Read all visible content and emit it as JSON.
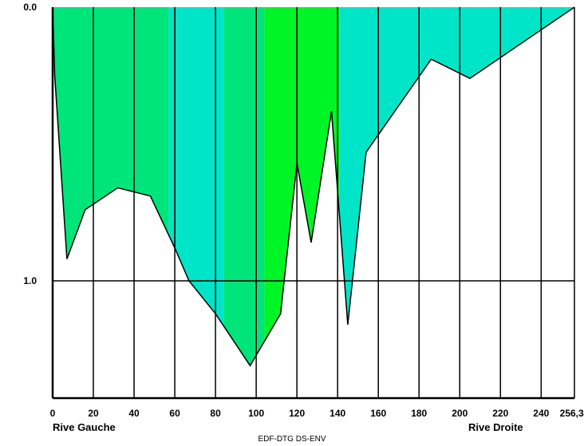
{
  "chart_data": {
    "type": "area",
    "xlabel": "",
    "ylabel": "",
    "x_ticks": [
      "0",
      "20",
      "40",
      "60",
      "80",
      "100",
      "120",
      "140",
      "160",
      "180",
      "200",
      "220",
      "240",
      "256,34"
    ],
    "y_ticks": [
      "0.0",
      "1.0"
    ],
    "xlim": [
      0,
      256.34
    ],
    "ylim": [
      0,
      1.43
    ],
    "y_inverted": true,
    "grid": true,
    "left_bank_label": "Rive Gauche",
    "right_bank_label": "Rive Droite",
    "credit": "EDF-DTG DS-ENV",
    "bed_profile": {
      "x": [
        0,
        1,
        7,
        16,
        32,
        48,
        60,
        67,
        80,
        97,
        112,
        120,
        127,
        137,
        145,
        154,
        186,
        205,
        256.34
      ],
      "depth": [
        0,
        0.25,
        0.92,
        0.74,
        0.66,
        0.69,
        0.88,
        1.0,
        1.12,
        1.31,
        1.12,
        0.57,
        0.86,
        0.38,
        1.16,
        0.53,
        0.19,
        0.26,
        0
      ]
    },
    "zones": [
      {
        "name": "",
        "color": "#00e57b",
        "x_range": [
          0,
          57
        ]
      },
      {
        "name": "",
        "color": "#00e5c8",
        "x_range": [
          57,
          84
        ]
      },
      {
        "name": "",
        "color": "#00e57b",
        "x_range": [
          84,
          104
        ]
      },
      {
        "name": "",
        "color": "#00f526",
        "x_range": [
          104,
          141
        ]
      },
      {
        "name": "",
        "color": "#00e5c8",
        "x_range": [
          141,
          256.34
        ]
      }
    ]
  }
}
